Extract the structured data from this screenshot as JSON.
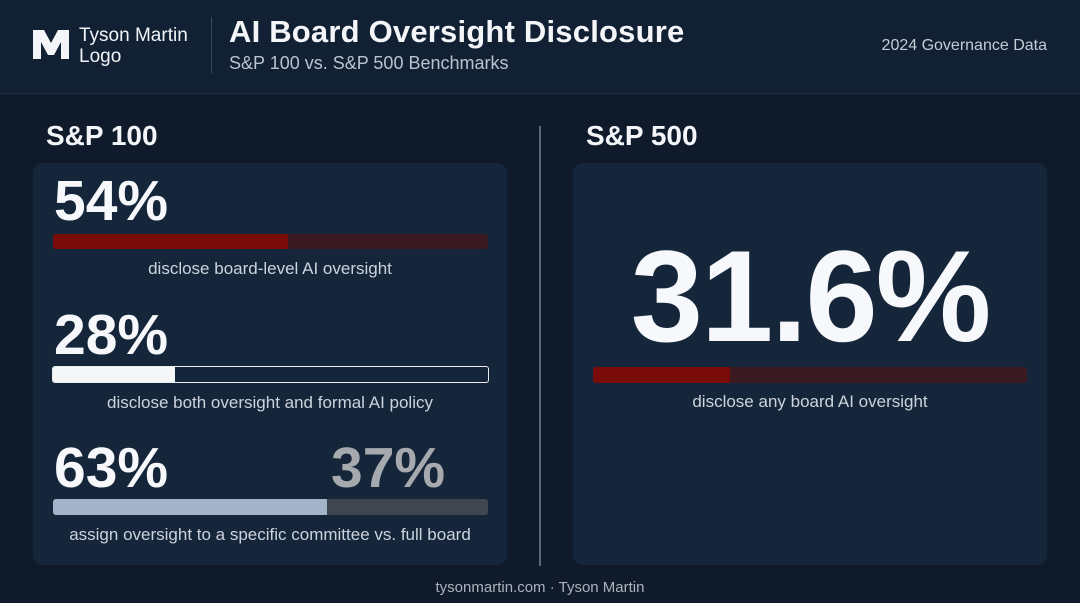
{
  "header": {
    "logo_line1": "Tyson Martin",
    "logo_line2": "Logo",
    "title": "AI Board Oversight Disclosure",
    "subtitle": "S&P 100 vs. S&P 500 Benchmarks",
    "tag": "2024 Governance Data"
  },
  "sp100": {
    "heading": "S&P 100",
    "stat1": {
      "value": "54%",
      "fraction": 0.54,
      "caption": "disclose board-level AI oversight"
    },
    "stat2": {
      "value": "28%",
      "fraction": 0.28,
      "caption": "disclose both oversight and formal AI policy"
    },
    "stat3": {
      "value_left": "63%",
      "value_right": "37%",
      "fraction": 0.63,
      "caption": "assign oversight to a specific committee vs. full board"
    }
  },
  "sp500": {
    "heading": "S&P 500",
    "value": "31.6%",
    "fraction": 0.316,
    "caption": "disclose any board AI oversight"
  },
  "footer": "tysonmartin.com · Tyson Martin",
  "colors": {
    "accent_red": "#7a0b0b",
    "track_red": "#3b1a22",
    "white_bar": "#f5f6f8",
    "steel_bar": "#a3b4c9",
    "gray_bar": "#3f4650"
  }
}
